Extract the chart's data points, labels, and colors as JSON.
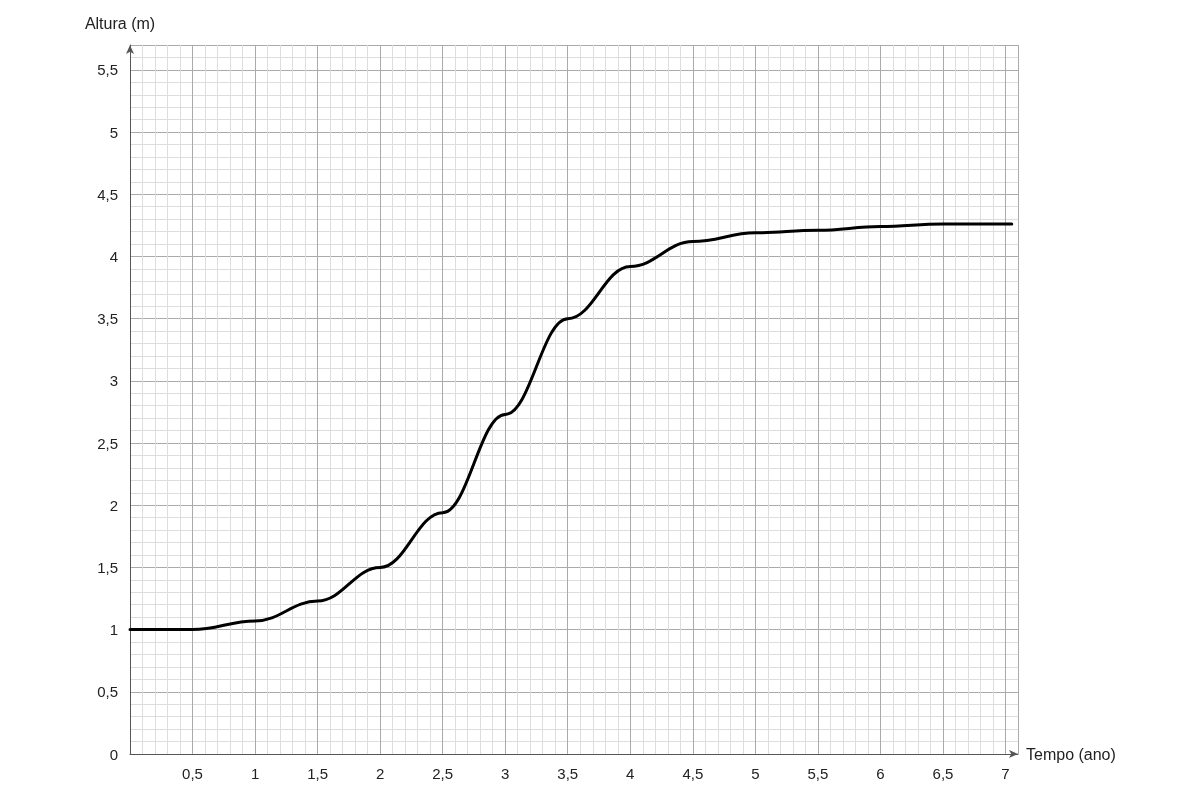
{
  "chart_data": {
    "type": "line",
    "xlabel": "Tempo (ano)",
    "ylabel": "Altura (m)",
    "x": [
      0,
      0.5,
      1,
      1.5,
      2,
      2.5,
      3,
      3.5,
      4,
      4.5,
      5,
      5.5,
      6,
      6.5,
      7.05
    ],
    "series": [
      {
        "color": "#000000",
        "values": [
          1.0,
          1.0,
          1.07,
          1.23,
          1.5,
          1.94,
          2.73,
          3.5,
          3.92,
          4.12,
          4.19,
          4.21,
          4.24,
          4.26,
          4.26
        ]
      }
    ],
    "xlim": [
      0,
      7.1
    ],
    "ylim": [
      0,
      5.7
    ],
    "xticks": [
      {
        "value": 0.5,
        "label": "0,5"
      },
      1,
      {
        "value": 1.5,
        "label": "1,5"
      },
      2,
      {
        "value": 2.5,
        "label": "2,5"
      },
      3,
      {
        "value": 3.5,
        "label": "3,5"
      },
      4,
      {
        "value": 4.5,
        "label": "4,5"
      },
      5,
      {
        "value": 5.5,
        "label": "5,5"
      },
      6,
      {
        "value": 6.5,
        "label": "6,5"
      },
      7
    ],
    "yticks": [
      0,
      {
        "value": 0.5,
        "label": "0,5"
      },
      1,
      {
        "value": 1.5,
        "label": "1,5"
      },
      2,
      {
        "value": 2.5,
        "label": "2,5"
      },
      3,
      {
        "value": 3.5,
        "label": "3,5"
      },
      4,
      {
        "value": 4.5,
        "label": "4,5"
      },
      5,
      {
        "value": 5.5,
        "label": "5,5"
      }
    ],
    "grid": true,
    "marker": "none",
    "line_style": "solid"
  }
}
